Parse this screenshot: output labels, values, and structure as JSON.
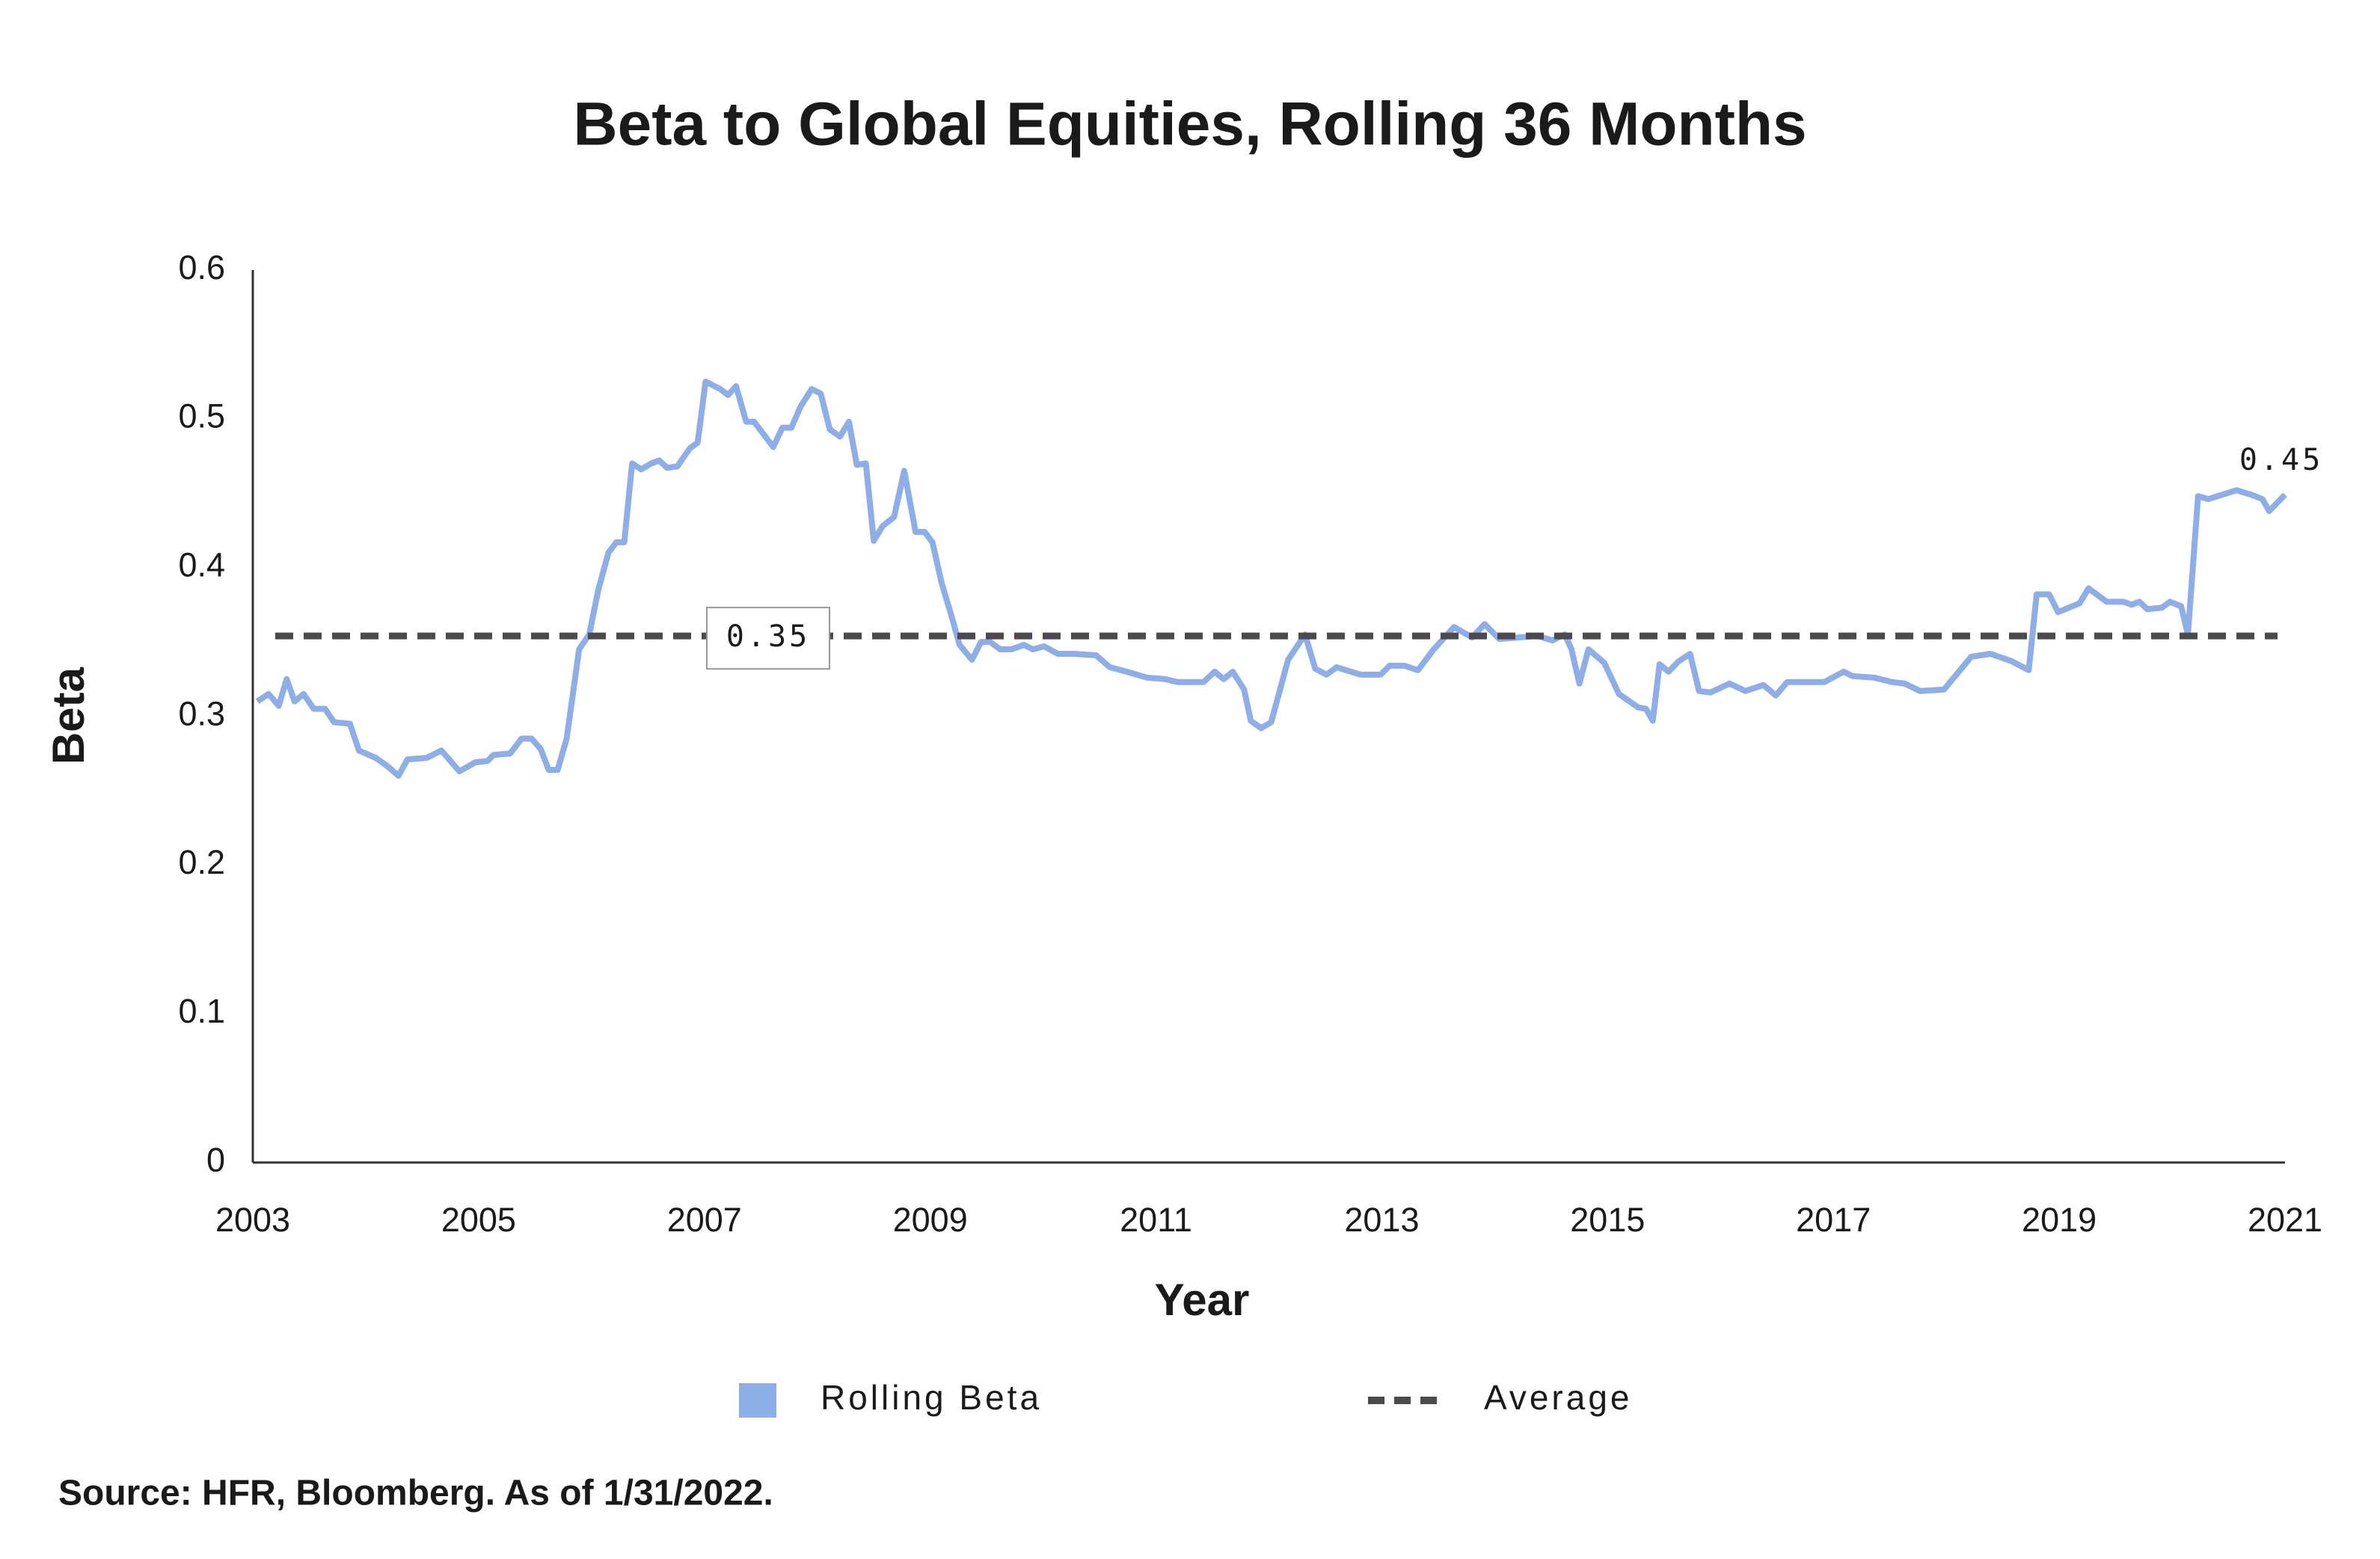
{
  "chart_data": {
    "type": "line",
    "title": "Beta to Global Equities, Rolling 36 Months",
    "x_label": "Year",
    "y_label": "Beta",
    "source": "Source: HFR, Bloomberg. As of 1/31/2022.",
    "x": [
      2003.04,
      2003.14,
      2003.23,
      2003.3,
      2003.37,
      2003.45,
      2003.54,
      2003.64,
      2003.72,
      2003.86,
      2003.94,
      2004.09,
      2004.2,
      2004.29,
      2004.37,
      2004.54,
      2004.67,
      2004.83,
      2004.97,
      2005.08,
      2005.13,
      2005.28,
      2005.38,
      2005.47,
      2005.55,
      2005.62,
      2005.7,
      2005.78,
      2005.89,
      2005.98,
      2006.06,
      2006.15,
      2006.22,
      2006.29,
      2006.36,
      2006.44,
      2006.53,
      2006.6,
      2006.67,
      2006.76,
      2006.87,
      2006.94,
      2007.01,
      2007.14,
      2007.21,
      2007.28,
      2007.37,
      2007.44,
      2007.52,
      2007.61,
      2007.69,
      2007.77,
      2007.85,
      2007.95,
      2008.03,
      2008.11,
      2008.2,
      2008.28,
      2008.35,
      2008.43,
      2008.5,
      2008.58,
      2008.68,
      2008.77,
      2008.87,
      2008.95,
      2009.02,
      2009.1,
      2009.19,
      2009.26,
      2009.37,
      2009.45,
      2009.53,
      2009.62,
      2009.72,
      2009.83,
      2009.91,
      2010.01,
      2010.13,
      2010.27,
      2010.47,
      2010.59,
      2010.74,
      2010.92,
      2011.08,
      2011.19,
      2011.42,
      2011.52,
      2011.6,
      2011.68,
      2011.78,
      2011.84,
      2011.93,
      2012.02,
      2012.17,
      2012.32,
      2012.41,
      2012.51,
      2012.6,
      2012.81,
      2012.99,
      2013.07,
      2013.2,
      2013.32,
      2013.46,
      2013.64,
      2013.8,
      2013.91,
      2014.04,
      2014.21,
      2014.38,
      2014.51,
      2014.62,
      2014.68,
      2014.75,
      2014.83,
      2014.97,
      2015.1,
      2015.27,
      2015.34,
      2015.4,
      2015.46,
      2015.54,
      2015.63,
      2015.73,
      2015.81,
      2015.91,
      2016.08,
      2016.22,
      2016.38,
      2016.49,
      2016.59,
      2016.92,
      2017.09,
      2017.17,
      2017.36,
      2017.52,
      2017.63,
      2017.77,
      2017.98,
      2018.22,
      2018.39,
      2018.58,
      2018.73,
      2018.8,
      2018.91,
      2018.99,
      2019.18,
      2019.26,
      2019.42,
      2019.57,
      2019.64,
      2019.71,
      2019.78,
      2019.91,
      2019.98,
      2020.08,
      2020.14,
      2020.23,
      2020.32,
      2020.57,
      2020.7,
      2020.8,
      2020.86,
      2021.0
    ],
    "series": [
      {
        "name": "Rolling Beta",
        "color": "#8eaee8",
        "values": [
          0.31,
          0.315,
          0.307,
          0.325,
          0.31,
          0.315,
          0.305,
          0.305,
          0.296,
          0.295,
          0.277,
          0.272,
          0.266,
          0.26,
          0.271,
          0.272,
          0.277,
          0.263,
          0.269,
          0.27,
          0.274,
          0.275,
          0.285,
          0.285,
          0.278,
          0.264,
          0.264,
          0.285,
          0.345,
          0.355,
          0.385,
          0.41,
          0.417,
          0.417,
          0.47,
          0.466,
          0.47,
          0.472,
          0.467,
          0.468,
          0.48,
          0.484,
          0.525,
          0.52,
          0.516,
          0.522,
          0.498,
          0.498,
          0.49,
          0.481,
          0.494,
          0.494,
          0.508,
          0.52,
          0.517,
          0.493,
          0.488,
          0.498,
          0.469,
          0.47,
          0.418,
          0.428,
          0.434,
          0.465,
          0.424,
          0.424,
          0.417,
          0.39,
          0.367,
          0.348,
          0.338,
          0.35,
          0.35,
          0.345,
          0.345,
          0.348,
          0.345,
          0.347,
          0.342,
          0.342,
          0.341,
          0.333,
          0.33,
          0.326,
          0.325,
          0.323,
          0.323,
          0.33,
          0.325,
          0.33,
          0.318,
          0.297,
          0.292,
          0.296,
          0.338,
          0.355,
          0.332,
          0.328,
          0.333,
          0.328,
          0.328,
          0.334,
          0.334,
          0.331,
          0.345,
          0.36,
          0.353,
          0.362,
          0.352,
          0.353,
          0.354,
          0.351,
          0.355,
          0.345,
          0.322,
          0.345,
          0.336,
          0.315,
          0.306,
          0.305,
          0.297,
          0.335,
          0.33,
          0.337,
          0.342,
          0.317,
          0.316,
          0.322,
          0.317,
          0.321,
          0.314,
          0.323,
          0.323,
          0.33,
          0.327,
          0.326,
          0.323,
          0.322,
          0.317,
          0.318,
          0.34,
          0.342,
          0.337,
          0.331,
          0.382,
          0.382,
          0.37,
          0.376,
          0.386,
          0.377,
          0.377,
          0.375,
          0.377,
          0.372,
          0.373,
          0.377,
          0.374,
          0.355,
          0.448,
          0.446,
          0.452,
          0.449,
          0.446,
          0.438,
          0.449
        ],
        "last_value_label": "0.45"
      }
    ],
    "average": {
      "name": "Average",
      "color": "#4d4a4f",
      "value": 0.354,
      "value_label": "0.35"
    },
    "xlim": [
      2003,
      2021
    ],
    "xticks": [
      2003,
      2005,
      2007,
      2009,
      2011,
      2013,
      2015,
      2017,
      2019,
      2021
    ],
    "ylim": [
      0,
      0.6
    ],
    "yticks": [
      0,
      0.1,
      0.2,
      0.3,
      0.4,
      0.5,
      0.6
    ],
    "grid": false
  }
}
